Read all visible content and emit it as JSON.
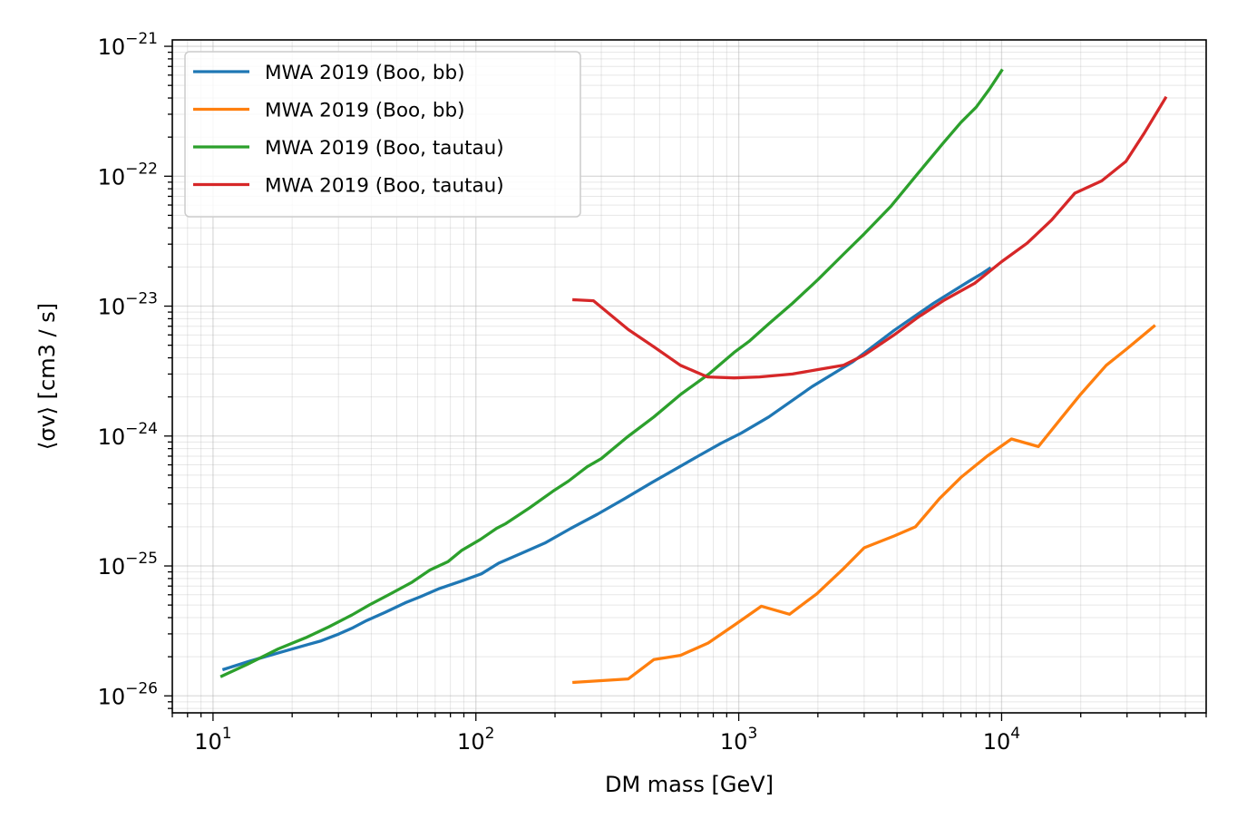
{
  "chart_data": {
    "type": "line",
    "title": "",
    "xlabel": "DM mass [GeV]",
    "ylabel": "⟨σv⟩ [cm3 / s]",
    "xscale": "log",
    "yscale": "log",
    "xlim": [
      7.0,
      60000.0
    ],
    "ylim": [
      7.4e-27,
      1.12e-21
    ],
    "grid": true,
    "grid_minor": true,
    "legend_position": "upper-left",
    "x_ticks": [
      {
        "base": "10",
        "exp": "1",
        "value": 10
      },
      {
        "base": "10",
        "exp": "2",
        "value": 100
      },
      {
        "base": "10",
        "exp": "3",
        "value": 1000
      },
      {
        "base": "10",
        "exp": "4",
        "value": 10000
      }
    ],
    "y_ticks": [
      {
        "base": "10",
        "exp": "−26",
        "value": 1e-26
      },
      {
        "base": "10",
        "exp": "−25",
        "value": 1e-25
      },
      {
        "base": "10",
        "exp": "−24",
        "value": 1e-24
      },
      {
        "base": "10",
        "exp": "−23",
        "value": 1e-23
      },
      {
        "base": "10",
        "exp": "−22",
        "value": 1e-22
      },
      {
        "base": "10",
        "exp": "−21",
        "value": 1e-21
      }
    ],
    "series": [
      {
        "name": "MWA 2019 (Boo, bb)",
        "color": "#1f77b4",
        "x": [
          11,
          13.8,
          17.9,
          23.2,
          25.8,
          30.2,
          34.1,
          38.4,
          45.2,
          53.8,
          61.6,
          72.7,
          88.9,
          105,
          122,
          149,
          183,
          230,
          290,
          368,
          468,
          560,
          700,
          857,
          1020,
          1300,
          1900,
          2700,
          3900,
          5500,
          7500,
          8300,
          9000
        ],
        "y": [
          1.6e-26,
          1.85e-26,
          2.15e-26,
          2.5e-26,
          2.65e-26,
          3e-26,
          3.35e-26,
          3.8e-26,
          4.4e-26,
          5.2e-26,
          5.8e-26,
          6.7e-26,
          7.7e-26,
          8.7e-26,
          1.05e-25,
          1.25e-25,
          1.5e-25,
          1.95e-25,
          2.5e-25,
          3.3e-25,
          4.4e-25,
          5.4e-25,
          7e-25,
          8.8e-25,
          1.05e-24,
          1.4e-24,
          2.4e-24,
          3.7e-24,
          6.5e-24,
          1.05e-23,
          1.55e-23,
          1.75e-23,
          1.95e-23
        ]
      },
      {
        "name": "MWA 2019 (Boo, bb)",
        "color": "#ff7f0e",
        "x": [
          236,
          300,
          380,
          475,
          600,
          765,
          970,
          1220,
          1560,
          1980,
          2500,
          3000,
          3900,
          4700,
          5800,
          7000,
          8800,
          10900,
          13800,
          17000,
          20000,
          25000,
          30000,
          38000
        ],
        "y": [
          1.27e-26,
          1.31e-26,
          1.35e-26,
          1.9e-26,
          2.05e-26,
          2.55e-26,
          3.55e-26,
          4.9e-26,
          4.25e-26,
          6.1e-26,
          9.5e-26,
          1.38e-25,
          1.7e-25,
          2e-25,
          3.3e-25,
          4.8e-25,
          7e-25,
          9.5e-25,
          8.3e-25,
          1.4e-24,
          2.1e-24,
          3.5e-24,
          4.7e-24,
          7e-24
        ]
      },
      {
        "name": "MWA 2019 (Boo, tautau)",
        "color": "#2ca02c",
        "x": [
          10.8,
          13.5,
          17.7,
          22.5,
          27.6,
          33.8,
          39.3,
          47.3,
          57.2,
          66.9,
          78.4,
          88.4,
          104,
          120,
          130,
          160,
          196,
          225,
          265,
          300,
          376,
          475,
          603,
          770,
          960,
          1100,
          1300,
          1600,
          2000,
          2500,
          3000,
          3800,
          4800,
          6000,
          7000,
          8000,
          9000,
          10000
        ],
        "y": [
          1.42e-26,
          1.75e-26,
          2.3e-26,
          2.8e-26,
          3.4e-26,
          4.2e-26,
          5e-26,
          6.1e-26,
          7.5e-26,
          9.3e-26,
          1.08e-25,
          1.32e-25,
          1.6e-25,
          1.95e-25,
          2.12e-25,
          2.8e-25,
          3.75e-25,
          4.5e-25,
          5.8e-25,
          6.7e-25,
          9.8e-25,
          1.4e-24,
          2.1e-24,
          3e-24,
          4.4e-24,
          5.4e-24,
          7.3e-24,
          1.05e-23,
          1.6e-23,
          2.5e-23,
          3.6e-23,
          5.9e-23,
          1.05e-22,
          1.8e-22,
          2.6e-22,
          3.4e-22,
          4.7e-22,
          6.5e-22
        ]
      },
      {
        "name": "MWA 2019 (Boo, tautau)",
        "color": "#d62728",
        "x": [
          236,
          280,
          380,
          480,
          600,
          760,
          960,
          1200,
          1600,
          2000,
          2500,
          3000,
          3900,
          4800,
          6000,
          7900,
          10000,
          12500,
          15500,
          19000,
          24000,
          29700,
          34900,
          42000
        ],
        "y": [
          1.12e-23,
          1.1e-23,
          6.6e-24,
          4.8e-24,
          3.5e-24,
          2.85e-24,
          2.8e-24,
          2.85e-24,
          3e-24,
          3.25e-24,
          3.5e-24,
          4.2e-24,
          6e-24,
          8.2e-24,
          1.1e-23,
          1.5e-23,
          2.2e-23,
          3.05e-23,
          4.6e-23,
          7.4e-23,
          9.2e-23,
          1.3e-22,
          2.15e-22,
          4e-22
        ]
      }
    ]
  }
}
